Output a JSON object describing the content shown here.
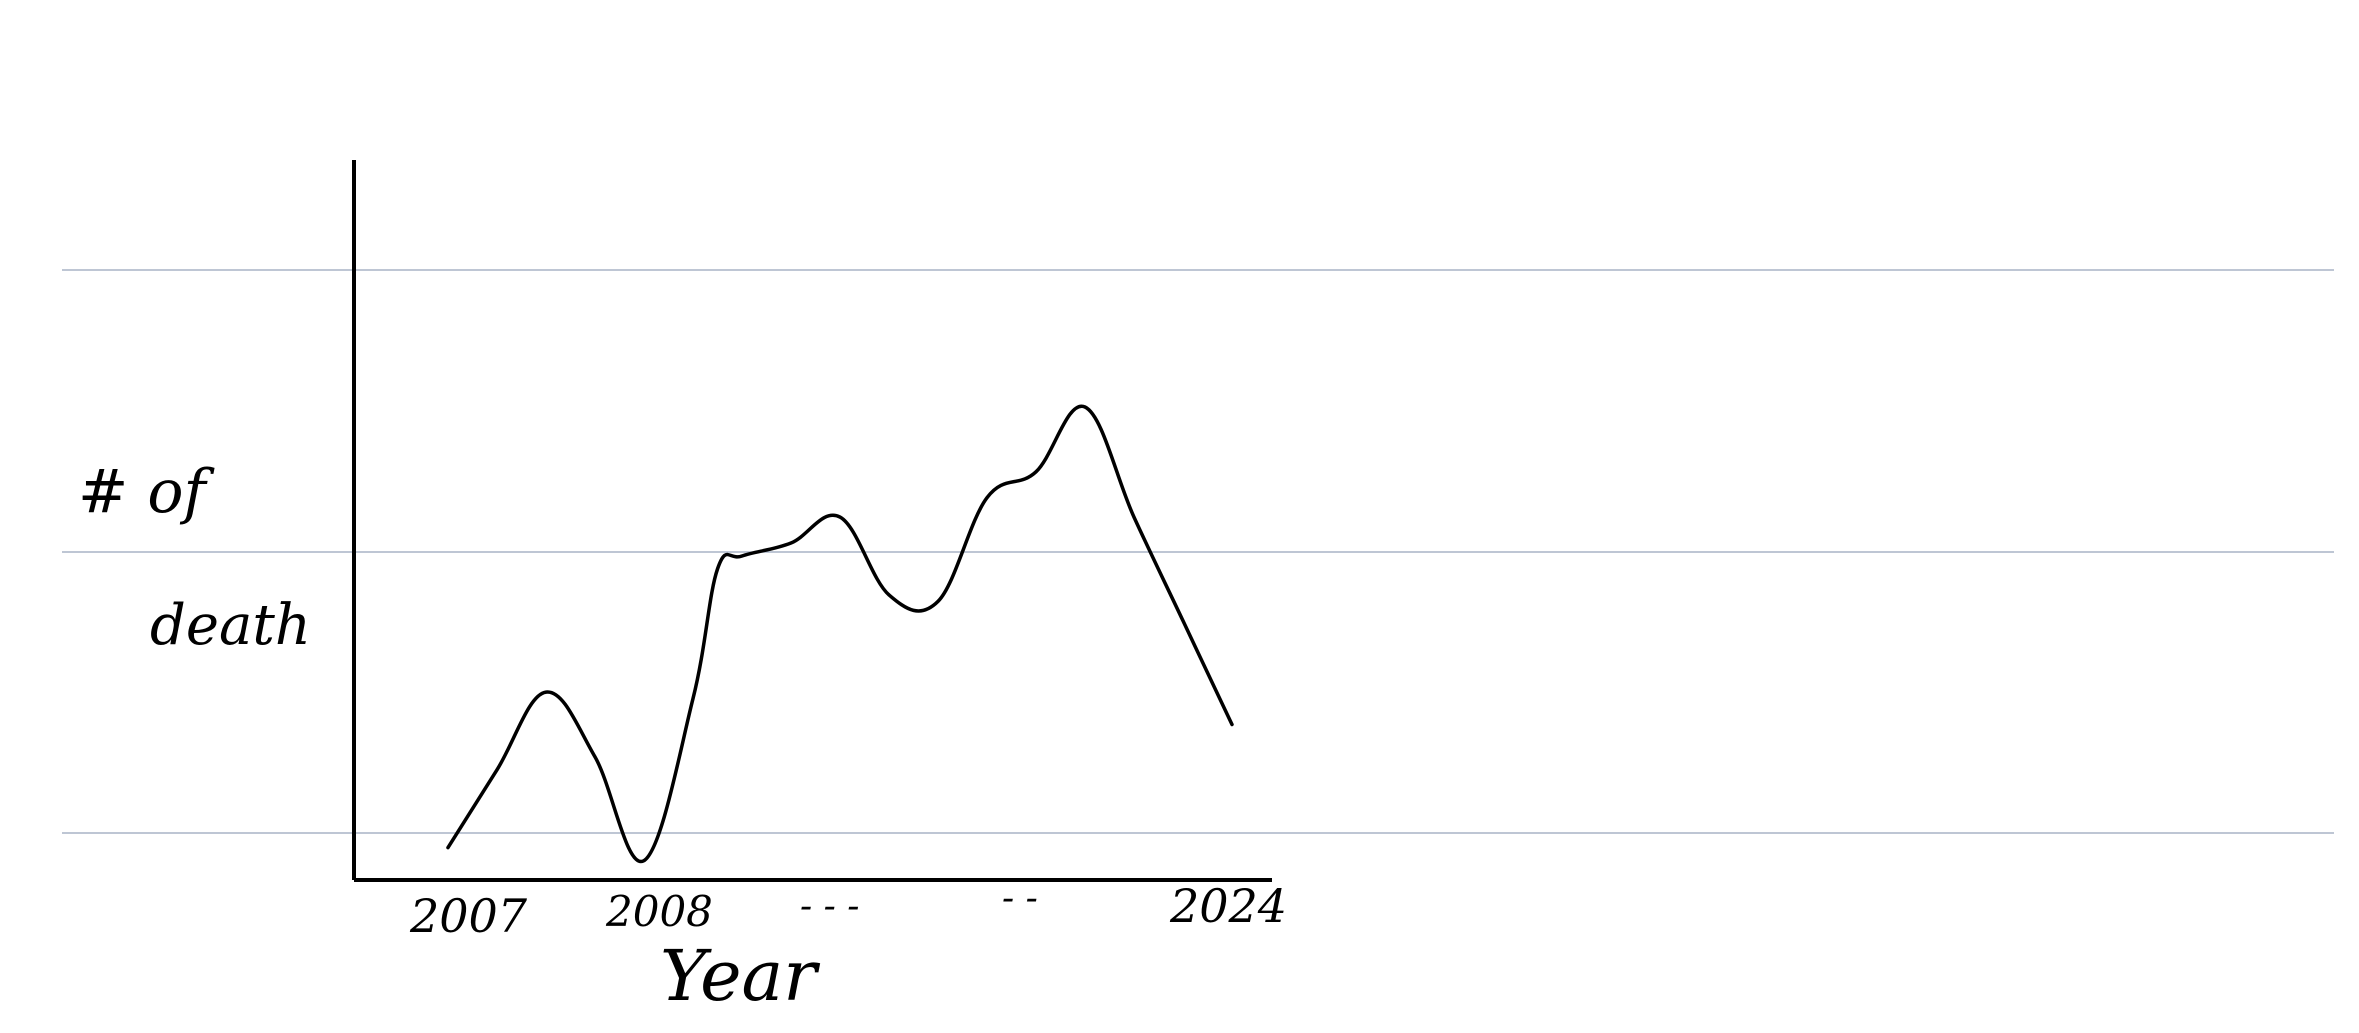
{
  "page": {
    "background": "#ffffff",
    "rule_color": "#a8b4c6",
    "ink_color": "#000000"
  },
  "chart_data": {
    "type": "line",
    "style": "hand-drawn sketch on lined notebook paper",
    "title": "",
    "xlabel": "Year",
    "ylabel_lines": [
      "# of",
      "death"
    ],
    "x_tick_labels": [
      "2007",
      "2008",
      "- - -",
      "- -",
      "2024"
    ],
    "y_ticks": [],
    "grid": false,
    "series": [
      {
        "x": [
          0,
          0.0625,
          0.125,
          0.1875,
          0.25,
          0.3125,
          0.3438,
          0.375,
          0.4375,
          0.5,
          0.5625,
          0.625,
          0.6875,
          0.75,
          0.8125,
          0.875,
          0.9375,
          1
        ],
        "y": [
          0.05,
          0.17,
          0.29,
          0.19,
          0.03,
          0.28,
          0.48,
          0.5,
          0.52,
          0.56,
          0.44,
          0.43,
          0.59,
          0.63,
          0.73,
          0.56,
          0.4,
          0.24
        ]
      }
    ]
  }
}
